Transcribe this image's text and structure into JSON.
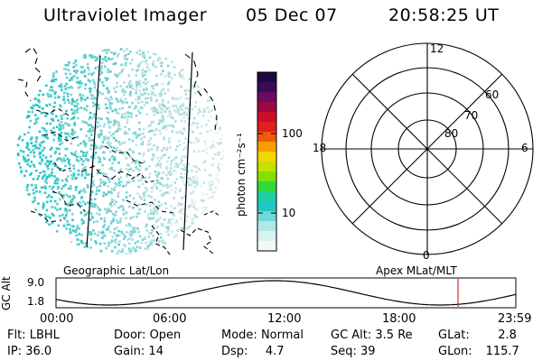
{
  "header": {
    "instrument": "Ultraviolet Imager",
    "date": "05 Dec 07",
    "time": "20:58:25 UT"
  },
  "colorbar": {
    "unit_label": "photon cm⁻²s⁻¹",
    "ticks": [
      {
        "value": 100,
        "label": "100"
      },
      {
        "value": 10,
        "label": "10"
      }
    ],
    "colors": [
      "#1a0a40",
      "#3a0a55",
      "#6a0a60",
      "#9a0a40",
      "#c8102a",
      "#e0201a",
      "#f05a10",
      "#f5a000",
      "#f0d800",
      "#c8e000",
      "#80e000",
      "#30d840",
      "#20d0a0",
      "#20c8c8",
      "#70d8d8",
      "#b0e8e8",
      "#d8f2f2",
      "#f0f8f8"
    ]
  },
  "left_map": {
    "label": "Geographic Lat/Lon"
  },
  "polar": {
    "label": "Apex MLat/MLT",
    "hour_labels": [
      "12",
      "6",
      "0",
      "18"
    ],
    "lat_labels": [
      "60",
      "70",
      "80"
    ]
  },
  "orbit_plot": {
    "ylabel": "GC Alt",
    "yticks": [
      "9.0",
      "1.8"
    ],
    "xticks": [
      "00:00",
      "06:00",
      "12:00",
      "18:00",
      "23:59"
    ],
    "marker_time": "20:58"
  },
  "footer": {
    "row1": [
      {
        "key": "Flt:",
        "value": "LBHL"
      },
      {
        "key": "Door:",
        "value": "Open"
      },
      {
        "key": "Mode:",
        "value": "Normal"
      },
      {
        "key": "GC Alt:",
        "value": "3.5 Re"
      },
      {
        "key": "GLat:",
        "value": "2.8"
      }
    ],
    "row2": [
      {
        "key": "IP:",
        "value": "36.0"
      },
      {
        "key": "Gain:",
        "value": "14"
      },
      {
        "key": "Dsp:",
        "value": "4.7"
      },
      {
        "key": "Seq:",
        "value": "39"
      },
      {
        "key": "GLon:",
        "value": "115.7"
      }
    ]
  }
}
